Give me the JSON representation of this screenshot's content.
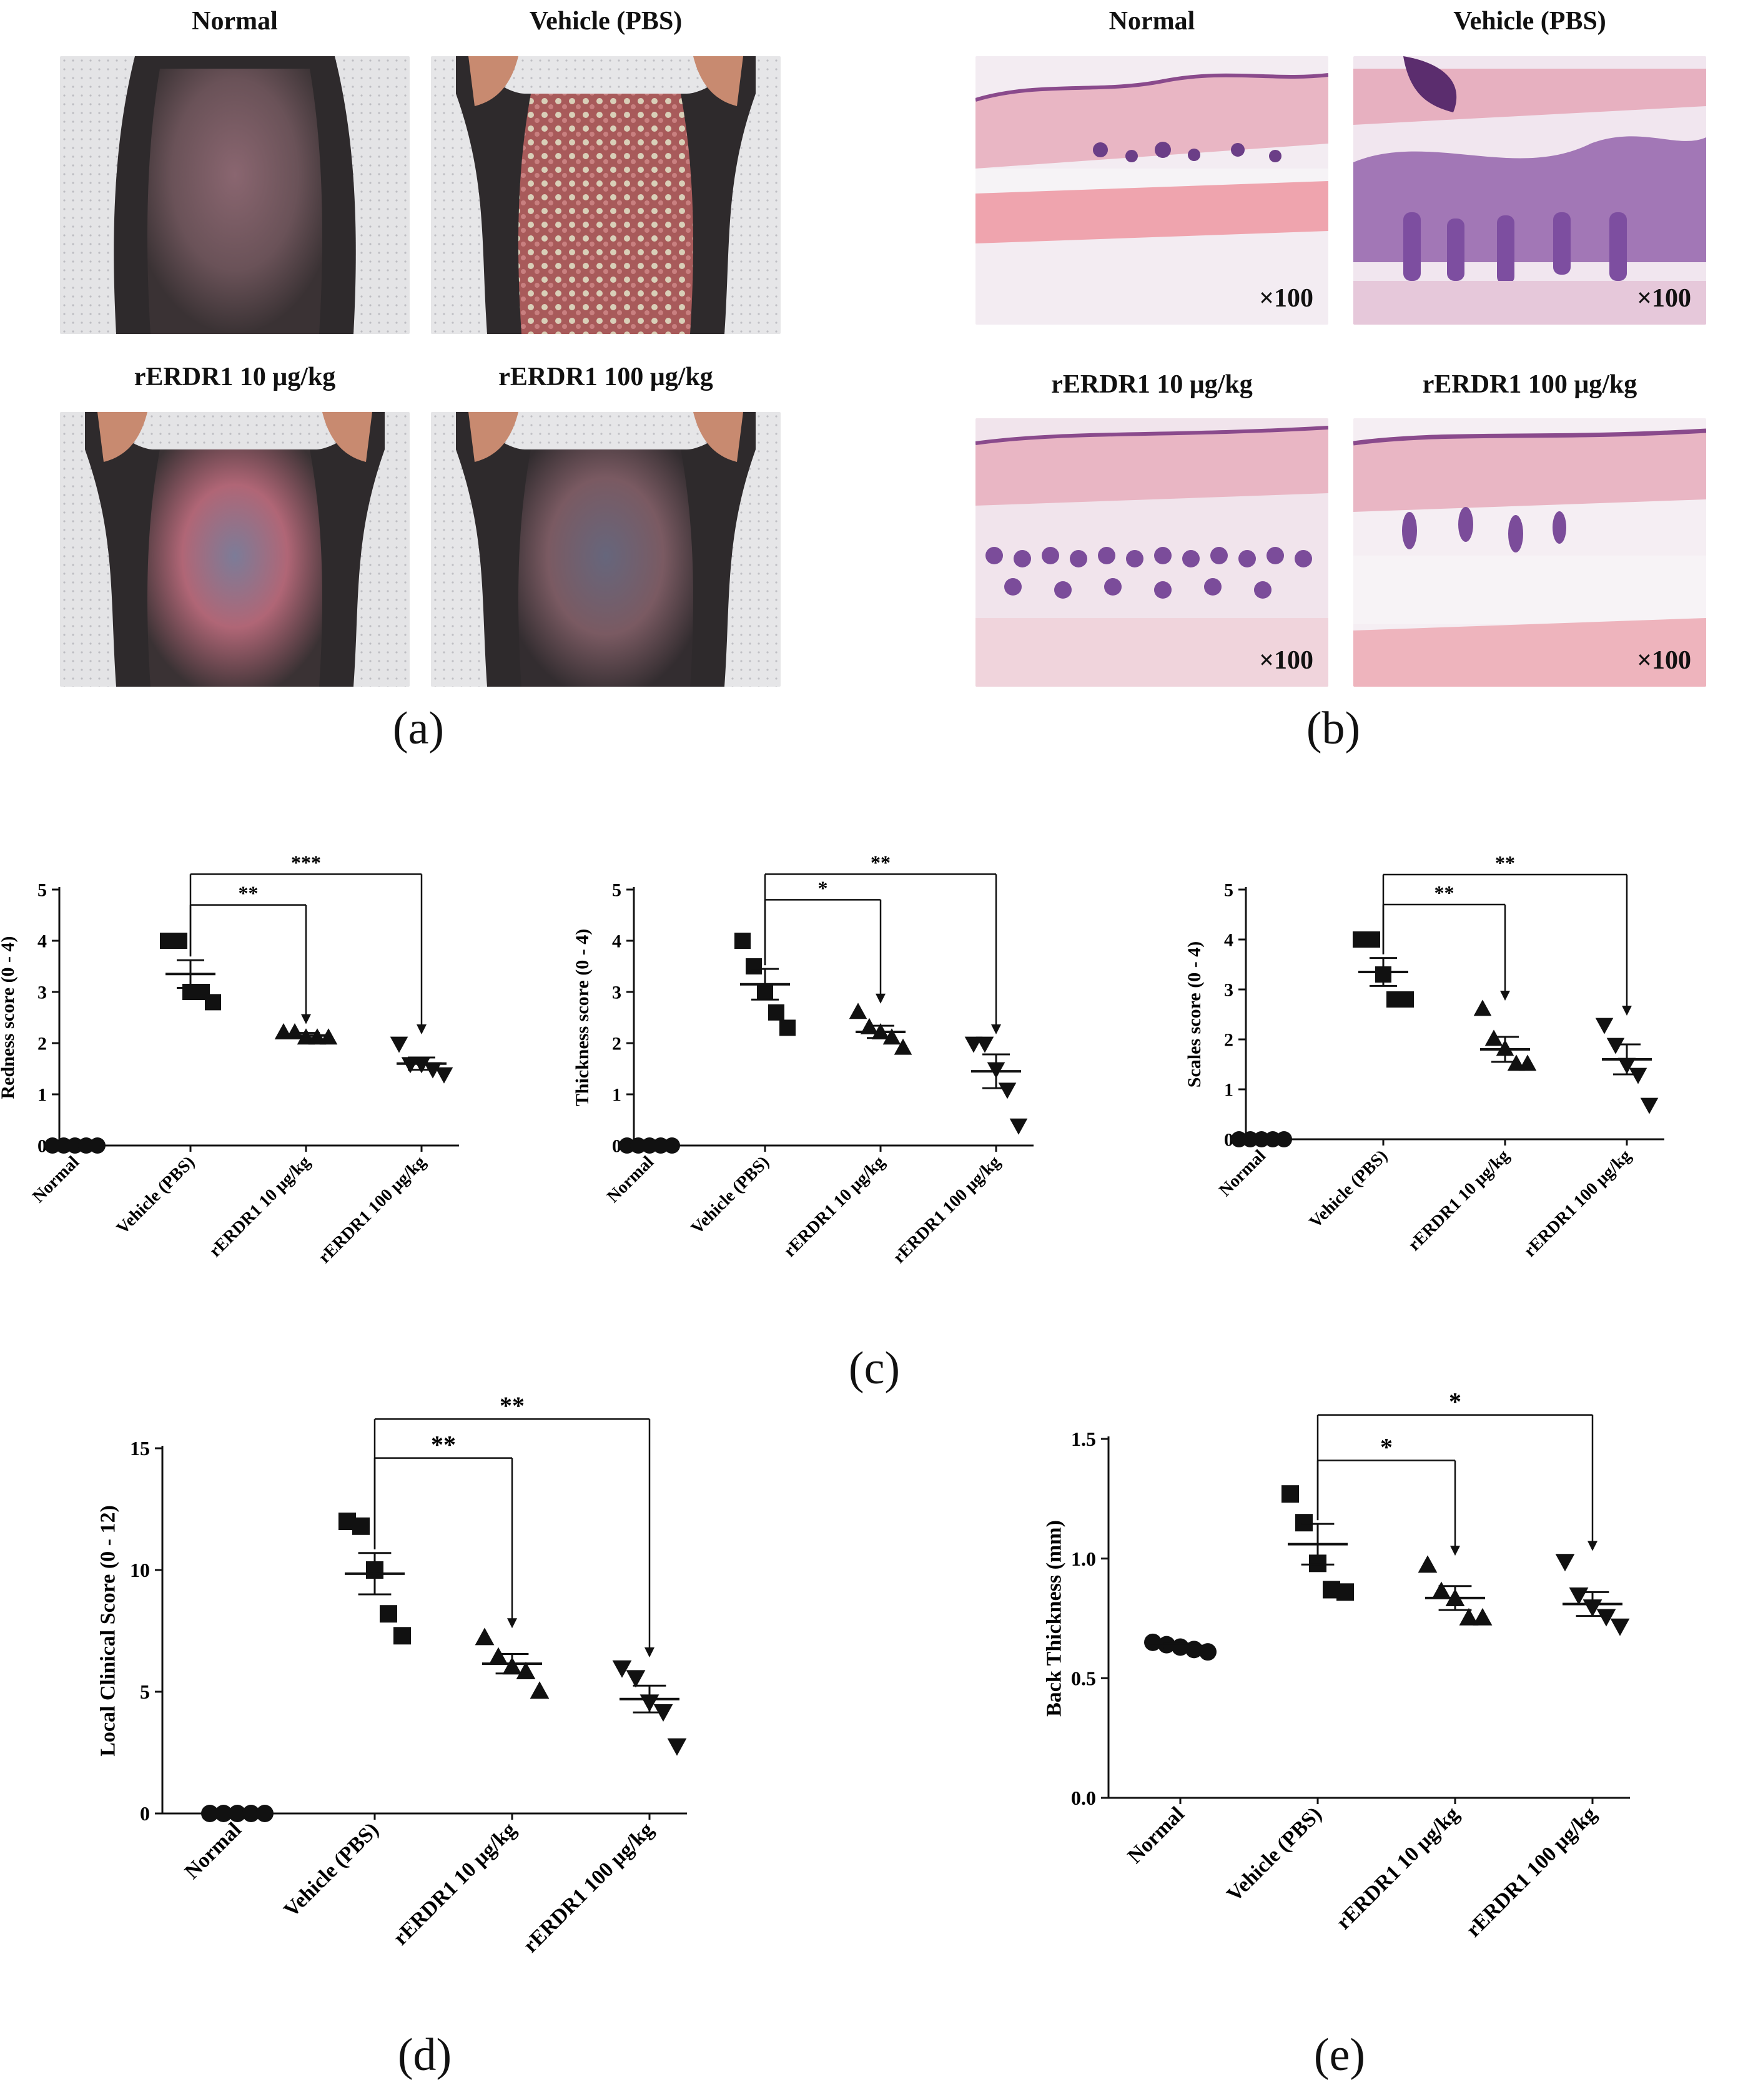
{
  "figure": {
    "panel_a": {
      "letter": "(a)",
      "photos": [
        {
          "title": "Normal",
          "kind": "mouse-normal"
        },
        {
          "title": "Vehicle (PBS)",
          "kind": "mouse-vehicle"
        },
        {
          "title": "rERDR1 10 μg/kg",
          "kind": "mouse-10"
        },
        {
          "title": "rERDR1 100 μg/kg",
          "kind": "mouse-100"
        }
      ]
    },
    "panel_b": {
      "letter": "(b)",
      "photos": [
        {
          "title": "Normal",
          "magnification": "×100",
          "kind": "histo-normal"
        },
        {
          "title": "Vehicle (PBS)",
          "magnification": "×100",
          "kind": "histo-vehicle"
        },
        {
          "title": "rERDR1 10 μg/kg",
          "magnification": "×100",
          "kind": "histo-10"
        },
        {
          "title": "rERDR1 100 μg/kg",
          "magnification": "×100",
          "kind": "histo-100"
        }
      ]
    },
    "panel_c": {
      "letter": "(c)"
    },
    "panel_d": {
      "letter": "(d)"
    },
    "panel_e": {
      "letter": "(e)"
    }
  },
  "chart_data": [
    {
      "id": "redness",
      "type": "scatter",
      "ylabel": "Redness score (0 - 4)",
      "categories": [
        "Normal",
        "Vehicle (PBS)",
        "rERDR1 10 μg/kg",
        "rERDR1 100 μg/kg"
      ],
      "yticks": [
        "0",
        "1",
        "2",
        "3",
        "4",
        "5"
      ],
      "ylim": [
        0,
        5
      ],
      "markers": [
        "circle",
        "square",
        "triangle-up",
        "triangle-down"
      ],
      "points": [
        [
          0,
          0,
          0,
          0,
          0
        ],
        [
          4,
          4,
          3,
          3,
          2.8
        ],
        [
          2.2,
          2.2,
          2.1,
          2.1,
          2.1
        ],
        [
          2,
          1.6,
          1.6,
          1.5,
          1.4
        ]
      ],
      "mean": [
        0,
        3.35,
        2.15,
        1.6
      ],
      "sem": [
        0,
        0.27,
        0.05,
        0.12
      ],
      "brackets": [
        {
          "from": 1,
          "to": 2,
          "level": 4.7,
          "label": "**"
        },
        {
          "from": 1,
          "to": 3,
          "level": 5.3,
          "label": "***"
        }
      ]
    },
    {
      "id": "thickness",
      "type": "scatter",
      "ylabel": "Thickness score (0 - 4)",
      "categories": [
        "Normal",
        "Vehicle (PBS)",
        "rERDR1 10 μg/kg",
        "rERDR1 100 μg/kg"
      ],
      "yticks": [
        "0",
        "1",
        "2",
        "3",
        "4",
        "5"
      ],
      "ylim": [
        0,
        5
      ],
      "markers": [
        "circle",
        "square",
        "triangle-up",
        "triangle-down"
      ],
      "points": [
        [
          0,
          0,
          0,
          0,
          0
        ],
        [
          4,
          3.5,
          3,
          2.6,
          2.3
        ],
        [
          2.6,
          2.3,
          2.2,
          2.1,
          1.9
        ],
        [
          2,
          2,
          1.5,
          1.1,
          0.4
        ]
      ],
      "mean": [
        0,
        3.15,
        2.22,
        1.45
      ],
      "sem": [
        0,
        0.3,
        0.12,
        0.33
      ],
      "brackets": [
        {
          "from": 1,
          "to": 2,
          "level": 4.8,
          "label": "*"
        },
        {
          "from": 1,
          "to": 3,
          "level": 5.3,
          "label": "**"
        }
      ]
    },
    {
      "id": "scales",
      "type": "scatter",
      "ylabel": "Scales score (0 - 4)",
      "categories": [
        "Normal",
        "Vehicle (PBS)",
        "rERDR1 10 μg/kg",
        "rERDR1 100 μg/kg"
      ],
      "yticks": [
        "0",
        "1",
        "2",
        "3",
        "4",
        "5"
      ],
      "ylim": [
        0,
        5
      ],
      "markers": [
        "circle",
        "square",
        "triangle-up",
        "triangle-down"
      ],
      "points": [
        [
          0,
          0,
          0,
          0,
          0
        ],
        [
          4,
          4,
          3.3,
          2.8,
          2.8
        ],
        [
          2.6,
          2,
          1.8,
          1.5,
          1.5
        ],
        [
          2.3,
          1.9,
          1.5,
          1.3,
          0.7
        ]
      ],
      "mean": [
        0,
        3.35,
        1.8,
        1.6
      ],
      "sem": [
        0,
        0.28,
        0.25,
        0.3
      ],
      "brackets": [
        {
          "from": 1,
          "to": 2,
          "level": 4.7,
          "label": "**"
        },
        {
          "from": 1,
          "to": 3,
          "level": 5.3,
          "label": "**"
        }
      ]
    },
    {
      "id": "local-clinical",
      "type": "scatter",
      "ylabel": "Local Clinical Score (0 - 12)",
      "categories": [
        "Normal",
        "Vehicle (PBS)",
        "rERDR1 10 μg/kg",
        "rERDR1 100 μg/kg"
      ],
      "yticks": [
        "0",
        "5",
        "10",
        "15"
      ],
      "ylim": [
        0,
        15
      ],
      "markers": [
        "circle",
        "square",
        "triangle-up",
        "triangle-down"
      ],
      "points": [
        [
          0,
          0,
          0,
          0,
          0
        ],
        [
          12,
          11.8,
          10,
          8.2,
          7.3
        ],
        [
          7.2,
          6.4,
          6,
          5.8,
          5
        ],
        [
          6,
          5.6,
          4.6,
          4.2,
          2.8
        ]
      ],
      "mean": [
        0,
        9.85,
        6.15,
        4.7
      ],
      "sem": [
        0,
        0.85,
        0.4,
        0.55
      ],
      "brackets": [
        {
          "from": 1,
          "to": 2,
          "level": 14.6,
          "label": "**"
        },
        {
          "from": 1,
          "to": 3,
          "level": 16.2,
          "label": "**"
        }
      ]
    },
    {
      "id": "back-thickness",
      "type": "scatter",
      "ylabel": "Back Thickness (mm)",
      "categories": [
        "Normal",
        "Vehicle (PBS)",
        "rERDR1 10 μg/kg",
        "rERDR1 100 μg/kg"
      ],
      "yticks": [
        "0.0",
        "0.5",
        "1.0",
        "1.5"
      ],
      "ylim": [
        0,
        1.5
      ],
      "markers": [
        "circle",
        "square",
        "triangle-up",
        "triangle-down"
      ],
      "points": [
        [
          0.65,
          0.64,
          0.63,
          0.62,
          0.61
        ],
        [
          1.27,
          1.15,
          0.98,
          0.87,
          0.86
        ],
        [
          0.97,
          0.86,
          0.83,
          0.75,
          0.75
        ],
        [
          0.99,
          0.85,
          0.8,
          0.76,
          0.72
        ]
      ],
      "mean": [
        0.635,
        1.06,
        0.835,
        0.81
      ],
      "sem": [
        0.01,
        0.085,
        0.05,
        0.05
      ],
      "brackets": [
        {
          "from": 1,
          "to": 2,
          "level": 1.41,
          "label": "*"
        },
        {
          "from": 1,
          "to": 3,
          "level": 1.6,
          "label": "*"
        }
      ]
    }
  ]
}
